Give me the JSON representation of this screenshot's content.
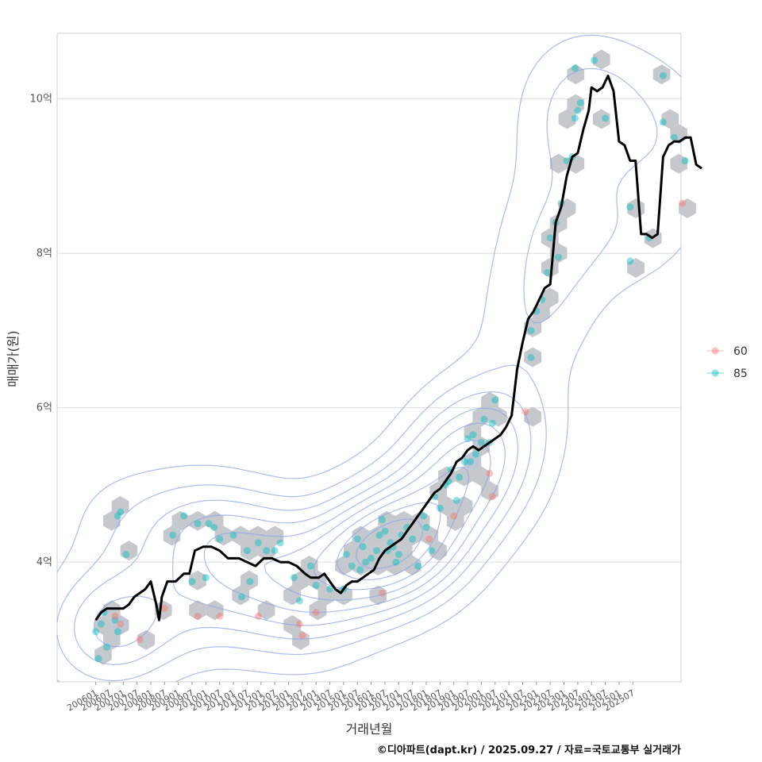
{
  "chart_data": {
    "type": "scatter",
    "xlabel": "거래년월",
    "ylabel": "매매가(원)",
    "y_ticks": [
      {
        "value": 4,
        "label": "4억"
      },
      {
        "value": 6,
        "label": "6억"
      },
      {
        "value": 8,
        "label": "8억"
      },
      {
        "value": 10,
        "label": "10억"
      }
    ],
    "ylim": [
      2.45,
      10.85
    ],
    "xlim": [
      2004.6,
      2027.25
    ],
    "x_ticks": [
      "200601",
      "200607",
      "200701",
      "200707",
      "200801",
      "200807",
      "200901",
      "200907",
      "201001",
      "201007",
      "201101",
      "201107",
      "201201",
      "201207",
      "201301",
      "201307",
      "201401",
      "201407",
      "201501",
      "201507",
      "201601",
      "201607",
      "201701",
      "201707",
      "201801",
      "201807",
      "201901",
      "201907",
      "202001",
      "202007",
      "202101",
      "202107",
      "202201",
      "202207",
      "202301",
      "202307",
      "202401",
      "202407",
      "202501",
      "202507"
    ],
    "legend": [
      {
        "label": "60",
        "color": "#F8766D"
      },
      {
        "label": "85",
        "color": "#00BFC4"
      }
    ],
    "series": [
      {
        "name": "85",
        "color": "#00BFC4",
        "points": [
          [
            2006.0,
            3.1
          ],
          [
            2006.1,
            2.75
          ],
          [
            2006.2,
            3.2
          ],
          [
            2006.3,
            3.35
          ],
          [
            2006.4,
            2.9
          ],
          [
            2006.8,
            3.1
          ],
          [
            2006.7,
            3.25
          ],
          [
            2006.9,
            4.65
          ],
          [
            2006.8,
            4.6
          ],
          [
            2007.1,
            4.1
          ],
          [
            2008.8,
            4.35
          ],
          [
            2009.2,
            4.6
          ],
          [
            2009.5,
            3.75
          ],
          [
            2009.7,
            4.5
          ],
          [
            2010.0,
            3.8
          ],
          [
            2010.1,
            4.5
          ],
          [
            2010.3,
            4.45
          ],
          [
            2010.5,
            4.3
          ],
          [
            2011.0,
            4.35
          ],
          [
            2011.3,
            3.55
          ],
          [
            2011.5,
            4.15
          ],
          [
            2011.6,
            3.75
          ],
          [
            2011.9,
            4.25
          ],
          [
            2012.2,
            4.15
          ],
          [
            2012.5,
            4.15
          ],
          [
            2012.7,
            4.25
          ],
          [
            2013.2,
            3.8
          ],
          [
            2013.4,
            3.5
          ],
          [
            2013.8,
            3.95
          ],
          [
            2014.0,
            3.7
          ],
          [
            2014.5,
            3.65
          ],
          [
            2015.0,
            3.65
          ],
          [
            2015.1,
            4.1
          ],
          [
            2015.3,
            3.95
          ],
          [
            2015.5,
            4.3
          ],
          [
            2015.7,
            4.2
          ],
          [
            2015.6,
            3.9
          ],
          [
            2015.8,
            4.0
          ],
          [
            2016.0,
            4.05
          ],
          [
            2016.2,
            4.15
          ],
          [
            2016.3,
            4.35
          ],
          [
            2016.5,
            4.4
          ],
          [
            2016.6,
            4.15
          ],
          [
            2016.8,
            4.2
          ],
          [
            2016.4,
            4.55
          ],
          [
            2016.7,
            4.25
          ],
          [
            2016.9,
            4.0
          ],
          [
            2017.0,
            4.1
          ],
          [
            2017.1,
            4.35
          ],
          [
            2017.3,
            4.45
          ],
          [
            2017.5,
            4.3
          ],
          [
            2017.7,
            3.95
          ],
          [
            2017.9,
            4.6
          ],
          [
            2018.0,
            4.45
          ],
          [
            2018.2,
            4.15
          ],
          [
            2018.3,
            4.85
          ],
          [
            2018.5,
            4.7
          ],
          [
            2018.7,
            5.0
          ],
          [
            2018.8,
            5.05
          ],
          [
            2018.9,
            5.2
          ],
          [
            2019.1,
            4.8
          ],
          [
            2019.2,
            5.1
          ],
          [
            2019.4,
            5.3
          ],
          [
            2019.5,
            5.6
          ],
          [
            2019.6,
            5.3
          ],
          [
            2019.7,
            5.65
          ],
          [
            2019.8,
            5.4
          ],
          [
            2020.0,
            5.55
          ],
          [
            2020.1,
            5.85
          ],
          [
            2020.3,
            5.55
          ],
          [
            2020.5,
            6.1
          ],
          [
            2020.4,
            5.8
          ],
          [
            2021.8,
            6.65
          ],
          [
            2021.8,
            7.0
          ],
          [
            2022.0,
            7.25
          ],
          [
            2022.2,
            7.4
          ],
          [
            2022.4,
            7.75
          ],
          [
            2022.5,
            8.2
          ],
          [
            2022.7,
            8.4
          ],
          [
            2022.8,
            7.95
          ],
          [
            2022.9,
            8.65
          ],
          [
            2023.1,
            9.2
          ],
          [
            2023.3,
            9.25
          ],
          [
            2023.4,
            9.75
          ],
          [
            2023.5,
            9.85
          ],
          [
            2023.6,
            9.95
          ],
          [
            2023.4,
            10.4
          ],
          [
            2024.1,
            10.5
          ],
          [
            2024.5,
            9.75
          ],
          [
            2025.4,
            8.6
          ],
          [
            2025.4,
            7.9
          ],
          [
            2026.1,
            8.2
          ],
          [
            2026.6,
            9.7
          ],
          [
            2026.6,
            10.3
          ],
          [
            2027.0,
            9.5
          ],
          [
            2027.4,
            9.2
          ]
        ]
      },
      {
        "name": "60",
        "color": "#F8766D",
        "points": [
          [
            2006.7,
            3.3
          ],
          [
            2006.9,
            3.2
          ],
          [
            2007.6,
            3.0
          ],
          [
            2008.5,
            3.4
          ],
          [
            2009.7,
            3.3
          ],
          [
            2010.5,
            3.3
          ],
          [
            2011.9,
            3.3
          ],
          [
            2013.4,
            3.2
          ],
          [
            2013.5,
            3.05
          ],
          [
            2014.0,
            3.35
          ],
          [
            2016.4,
            3.6
          ],
          [
            2018.1,
            4.3
          ],
          [
            2019.0,
            4.6
          ],
          [
            2020.3,
            5.15
          ],
          [
            2020.4,
            4.85
          ],
          [
            2021.6,
            5.95
          ],
          [
            2027.3,
            8.65
          ]
        ]
      }
    ],
    "trend_line": {
      "color": "#000000",
      "points": [
        [
          2006.0,
          3.25
        ],
        [
          2006.2,
          3.35
        ],
        [
          2006.4,
          3.4
        ],
        [
          2007.0,
          3.4
        ],
        [
          2007.2,
          3.45
        ],
        [
          2007.4,
          3.55
        ],
        [
          2007.6,
          3.6
        ],
        [
          2007.8,
          3.65
        ],
        [
          2008.0,
          3.75
        ],
        [
          2008.2,
          3.45
        ],
        [
          2008.3,
          3.25
        ],
        [
          2008.4,
          3.55
        ],
        [
          2008.6,
          3.75
        ],
        [
          2008.9,
          3.75
        ],
        [
          2009.2,
          3.85
        ],
        [
          2009.4,
          3.85
        ],
        [
          2009.6,
          4.15
        ],
        [
          2009.9,
          4.2
        ],
        [
          2010.2,
          4.2
        ],
        [
          2010.5,
          4.15
        ],
        [
          2010.8,
          4.05
        ],
        [
          2011.2,
          4.05
        ],
        [
          2011.5,
          4.0
        ],
        [
          2011.8,
          3.95
        ],
        [
          2012.1,
          4.05
        ],
        [
          2012.4,
          4.05
        ],
        [
          2012.7,
          4.0
        ],
        [
          2013.0,
          4.0
        ],
        [
          2013.3,
          3.95
        ],
        [
          2013.6,
          3.85
        ],
        [
          2013.8,
          3.8
        ],
        [
          2014.1,
          3.8
        ],
        [
          2014.3,
          3.85
        ],
        [
          2014.5,
          3.75
        ],
        [
          2014.7,
          3.65
        ],
        [
          2014.9,
          3.6
        ],
        [
          2015.1,
          3.7
        ],
        [
          2015.3,
          3.75
        ],
        [
          2015.5,
          3.75
        ],
        [
          2015.7,
          3.8
        ],
        [
          2015.9,
          3.85
        ],
        [
          2016.1,
          3.9
        ],
        [
          2016.3,
          4.05
        ],
        [
          2016.5,
          4.15
        ],
        [
          2016.7,
          4.2
        ],
        [
          2016.9,
          4.25
        ],
        [
          2017.1,
          4.3
        ],
        [
          2017.3,
          4.4
        ],
        [
          2017.5,
          4.5
        ],
        [
          2017.7,
          4.6
        ],
        [
          2017.9,
          4.7
        ],
        [
          2018.1,
          4.8
        ],
        [
          2018.3,
          4.9
        ],
        [
          2018.5,
          4.95
        ],
        [
          2018.7,
          5.05
        ],
        [
          2018.9,
          5.15
        ],
        [
          2019.1,
          5.3
        ],
        [
          2019.3,
          5.35
        ],
        [
          2019.5,
          5.45
        ],
        [
          2019.7,
          5.5
        ],
        [
          2019.9,
          5.45
        ],
        [
          2020.1,
          5.5
        ],
        [
          2020.3,
          5.55
        ],
        [
          2020.5,
          5.6
        ],
        [
          2020.7,
          5.65
        ],
        [
          2020.9,
          5.75
        ],
        [
          2021.1,
          5.9
        ],
        [
          2021.3,
          6.5
        ],
        [
          2021.5,
          6.85
        ],
        [
          2021.7,
          7.15
        ],
        [
          2021.9,
          7.25
        ],
        [
          2022.1,
          7.4
        ],
        [
          2022.3,
          7.55
        ],
        [
          2022.5,
          7.6
        ],
        [
          2022.7,
          8.4
        ],
        [
          2022.9,
          8.6
        ],
        [
          2023.1,
          9.0
        ],
        [
          2023.3,
          9.25
        ],
        [
          2023.5,
          9.3
        ],
        [
          2023.7,
          9.6
        ],
        [
          2023.9,
          9.85
        ],
        [
          2024.0,
          10.15
        ],
        [
          2024.2,
          10.1
        ],
        [
          2024.4,
          10.15
        ],
        [
          2024.6,
          10.3
        ],
        [
          2024.8,
          10.1
        ],
        [
          2025.0,
          9.45
        ],
        [
          2025.2,
          9.4
        ],
        [
          2025.4,
          9.2
        ],
        [
          2025.6,
          9.2
        ],
        [
          2025.8,
          8.25
        ],
        [
          2026.0,
          8.25
        ],
        [
          2026.2,
          8.2
        ],
        [
          2026.4,
          8.25
        ],
        [
          2026.6,
          9.25
        ],
        [
          2026.8,
          9.4
        ],
        [
          2027.0,
          9.45
        ],
        [
          2027.2,
          9.45
        ],
        [
          2027.4,
          9.5
        ],
        [
          2027.6,
          9.5
        ],
        [
          2027.8,
          9.15
        ],
        [
          2028.0,
          9.1
        ]
      ]
    }
  },
  "caption": "©디아파트(dapt.kr) / 2025.09.27 / 자료=국토교통부 실거래가"
}
